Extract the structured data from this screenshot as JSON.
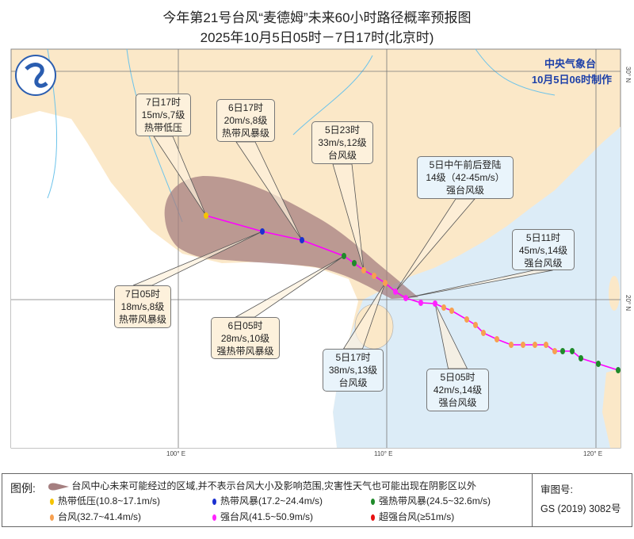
{
  "header": {
    "title": "今年第21号台风“麦德姆”未来60小时路径概率预报图",
    "subtitle": "2025年10月5日05时－7日17时(北京时)"
  },
  "agency": {
    "name": "中央气象台",
    "issued": "10月5日06时制作"
  },
  "axes": {
    "lon": [
      "100° E",
      "110° E",
      "120° E"
    ],
    "lat": [
      "20° N",
      "30° N"
    ]
  },
  "callouts": [
    {
      "time": "7日17时",
      "wind": "15m/s,7级",
      "level": "热带低压"
    },
    {
      "time": "6日17时",
      "wind": "20m/s,8级",
      "level": "热带风暴级"
    },
    {
      "time": "5日23时",
      "wind": "33m/s,12级",
      "level": "台风级"
    },
    {
      "time": "5日中午前后登陆",
      "wind": "14级（42-45m/s）",
      "level": "强台风级"
    },
    {
      "time": "5日11时",
      "wind": "45m/s,14级",
      "level": "强台风级"
    },
    {
      "time": "7日05时",
      "wind": "18m/s,8级",
      "level": "热带风暴级"
    },
    {
      "time": "6日05时",
      "wind": "28m/s,10级",
      "level": "强热带风暴级"
    },
    {
      "time": "5日17时",
      "wind": "38m/s,13级",
      "level": "台风级"
    },
    {
      "time": "5日05时",
      "wind": "42m/s,14级",
      "level": "强台风级"
    }
  ],
  "legend": {
    "title": "图例:",
    "cone": "台风中心未来可能经过的区域,并不表示台风大小及影响范围,灾害性天气也可能出现在阴影区以外",
    "items": [
      {
        "label": "热带低压(10.8~17.1m/s)",
        "color": "#f5c400"
      },
      {
        "label": "热带风暴(17.2~24.4m/s)",
        "color": "#1a2fd0"
      },
      {
        "label": "强热带风暴(24.5~32.6m/s)",
        "color": "#1f8a2a"
      },
      {
        "label": "台风(32.7~41.4m/s)",
        "color": "#f7a050"
      },
      {
        "label": "强台风(41.5~50.9m/s)",
        "color": "#ff22ff"
      },
      {
        "label": "超强台风(≥51m/s)",
        "color": "#e81010"
      }
    ],
    "approval_label": "审图号:",
    "approval_no": "GS (2019) 3082号"
  },
  "colors": {
    "land": "#fbe8c8",
    "sea": "#dcecf7",
    "outside": "#ffffff",
    "cone": "#a57f80",
    "track": "#ff00ff"
  }
}
